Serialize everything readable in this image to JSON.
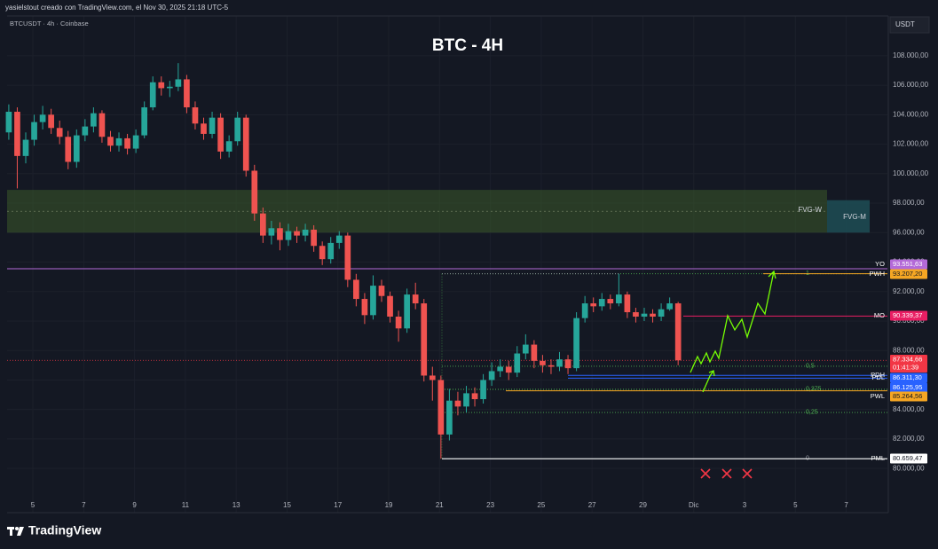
{
  "chart_data": {
    "type": "candlestick",
    "header": "yasielstout creado con TradingView.com, el Nov 30, 2025 21:18 UTC-5",
    "symbol": "BTCUSDT · 4h · Coinbase",
    "title": "BTC - 4H",
    "currency": "USDT",
    "footer": "TradingView",
    "up_color": "#26a69a",
    "down_color": "#ef5350",
    "grid": true,
    "open": [
      102800,
      104200,
      101200,
      102300,
      103500,
      104000,
      103100,
      102500,
      100800,
      102600,
      103200,
      104100,
      102500,
      101900,
      102400,
      101700,
      102600,
      104500,
      106200,
      105800,
      105900,
      106400,
      104500,
      103400,
      102700,
      103800,
      101500,
      102200,
      103800,
      100200,
      97300,
      95800,
      96300,
      95500,
      96100,
      95800,
      96200,
      95100,
      94200,
      95300,
      95800,
      92800,
      91500,
      90400,
      92400,
      91700,
      90300,
      89500,
      91800,
      91200,
      86300,
      86000,
      82300,
      84600,
      84200,
      85100,
      84700,
      86000,
      86600,
      86900,
      86500,
      87800,
      88400,
      87300,
      87000,
      86900,
      87400,
      86800,
      90200,
      91200,
      91000,
      91500,
      91200,
      91800,
      90600,
      90300,
      90500,
      90300,
      90800,
      91200
    ],
    "high": [
      104700,
      104500,
      102800,
      104000,
      104600,
      104400,
      103600,
      102900,
      103000,
      103700,
      104500,
      104300,
      102900,
      102800,
      102700,
      103000,
      104900,
      106600,
      106600,
      106300,
      107500,
      106700,
      104900,
      103800,
      104200,
      104100,
      102600,
      104200,
      104000,
      100600,
      97700,
      96800,
      96700,
      96600,
      96400,
      96600,
      96500,
      95400,
      95700,
      96100,
      96000,
      93200,
      91900,
      93100,
      92800,
      92000,
      90700,
      92200,
      92600,
      91500,
      86900,
      86300,
      85400,
      85200,
      85600,
      85500,
      86400,
      87200,
      87400,
      87300,
      88300,
      89100,
      88700,
      87700,
      87400,
      87900,
      87700,
      90600,
      91700,
      91600,
      91900,
      91800,
      93207.2,
      92000,
      90900,
      90900,
      90800,
      91200,
      91600,
      91300
    ],
    "low": [
      102300,
      99000,
      100700,
      101900,
      103000,
      102700,
      102000,
      100300,
      100400,
      102200,
      102800,
      102100,
      101500,
      101500,
      101300,
      101400,
      102400,
      104300,
      105300,
      105200,
      105600,
      104100,
      103000,
      102300,
      102400,
      101000,
      101100,
      101900,
      99800,
      96800,
      95300,
      95200,
      94800,
      95100,
      95300,
      95400,
      94700,
      93800,
      93900,
      94900,
      92300,
      91000,
      89800,
      90100,
      91300,
      89900,
      88600,
      89200,
      90800,
      85900,
      84600,
      80659.47,
      81900,
      83600,
      83800,
      84200,
      84400,
      85600,
      86200,
      86000,
      86200,
      87400,
      86800,
      86500,
      86400,
      86600,
      86400,
      86600,
      89900,
      90600,
      90700,
      90800,
      91000,
      90200,
      89900,
      90000,
      89900,
      90000,
      90700,
      87000
    ],
    "close": [
      104200,
      101200,
      102300,
      103500,
      104000,
      103100,
      102500,
      100800,
      102600,
      103200,
      104100,
      102500,
      101900,
      102400,
      101700,
      102600,
      104500,
      106200,
      105800,
      105900,
      106400,
      104500,
      103400,
      102700,
      103800,
      101500,
      102200,
      103800,
      100200,
      97300,
      95800,
      96300,
      95500,
      96100,
      95800,
      96200,
      95100,
      94200,
      95300,
      95800,
      92800,
      91500,
      90400,
      92400,
      91700,
      90300,
      89500,
      91800,
      91200,
      86300,
      86000,
      82300,
      84600,
      84200,
      85100,
      84700,
      86000,
      86600,
      86900,
      86500,
      87800,
      88400,
      87300,
      87000,
      86900,
      87400,
      86800,
      90200,
      91200,
      91000,
      91500,
      91200,
      91800,
      90600,
      90300,
      90500,
      90300,
      90800,
      91200,
      87334.66
    ],
    "xlim": [
      -0.2,
      103.7
    ],
    "xticks": [
      {
        "value": 2.84,
        "label": "5"
      },
      {
        "value": 8.84,
        "label": "7"
      },
      {
        "value": 14.84,
        "label": "9"
      },
      {
        "value": 20.84,
        "label": "11"
      },
      {
        "value": 26.84,
        "label": "13"
      },
      {
        "value": 32.84,
        "label": "15"
      },
      {
        "value": 38.84,
        "label": "17"
      },
      {
        "value": 44.84,
        "label": "19"
      },
      {
        "value": 50.84,
        "label": "21"
      },
      {
        "value": 56.84,
        "label": "23"
      },
      {
        "value": 62.84,
        "label": "25"
      },
      {
        "value": 68.84,
        "label": "27"
      },
      {
        "value": 74.84,
        "label": "29"
      },
      {
        "value": 80.84,
        "label": "Dic"
      },
      {
        "value": 86.84,
        "label": "3"
      },
      {
        "value": 92.84,
        "label": "5"
      },
      {
        "value": 98.84,
        "label": "7"
      }
    ],
    "ylim": [
      77000,
      110700
    ],
    "yticks": [
      {
        "value": 80000,
        "label": "80.000,00"
      },
      {
        "value": 82000,
        "label": "82.000,00"
      },
      {
        "value": 84000,
        "label": "84.000,00"
      },
      {
        "value": 86000,
        "label": "86.000,00"
      },
      {
        "value": 88000,
        "label": "88.000,00"
      },
      {
        "value": 90000,
        "label": "90.000,00"
      },
      {
        "value": 92000,
        "label": "92.000,00"
      },
      {
        "value": 94000,
        "label": "94.000,00"
      },
      {
        "value": 96000,
        "label": "96.000,00"
      },
      {
        "value": 98000,
        "label": "98.000,00"
      },
      {
        "value": 100000,
        "label": "100.000,00"
      },
      {
        "value": 102000,
        "label": "102.000,00"
      },
      {
        "value": 104000,
        "label": "104.000,00"
      },
      {
        "value": 106000,
        "label": "106.000,00"
      },
      {
        "value": 108000,
        "label": "108.000,00"
      }
    ],
    "levels": [
      {
        "name": "YO",
        "value": 93551.63,
        "label": "93.551,63",
        "color": "#b36ad8"
      },
      {
        "name": "PWH",
        "value": 93207.2,
        "label": "93.207,20",
        "color": "#f5a623"
      },
      {
        "name": "MO",
        "value": 90339.37,
        "label": "90.339,37",
        "color": "#e91e63"
      },
      {
        "name": "PDH",
        "value": 86311.3,
        "label": "86.311,30",
        "color": "#2962ff"
      },
      {
        "name": "PDL",
        "value": 86125.95,
        "label": "86.125,95",
        "color": "#2962ff"
      },
      {
        "name": "PWL",
        "value": 85264.56,
        "label": "85.264,56",
        "color": "#f5a623"
      },
      {
        "name": "PML",
        "value": 80659.47,
        "label": "80.659,47",
        "color": "#ffffff"
      }
    ],
    "last_price": {
      "value": 87334.66,
      "label": "87.334,66",
      "countdown": "01:41:39",
      "color": "#f23645"
    },
    "fib": {
      "low": 80659.47,
      "high": 93207.2,
      "color": "#4caf50",
      "levels": [
        1,
        {
          "value": 0.5,
          "label": "0,5"
        },
        {
          "value": 0.375,
          "label": "0,375"
        },
        {
          "value": 0.25,
          "label": "0,25"
        },
        0
      ]
    },
    "zones": [
      {
        "name": "FVG-W",
        "low": 96000,
        "high": 98900,
        "color": "#3a5a2a"
      },
      {
        "name": "FVG-M",
        "low": 96000,
        "high": 98200,
        "color": "#1d4a52"
      }
    ]
  }
}
